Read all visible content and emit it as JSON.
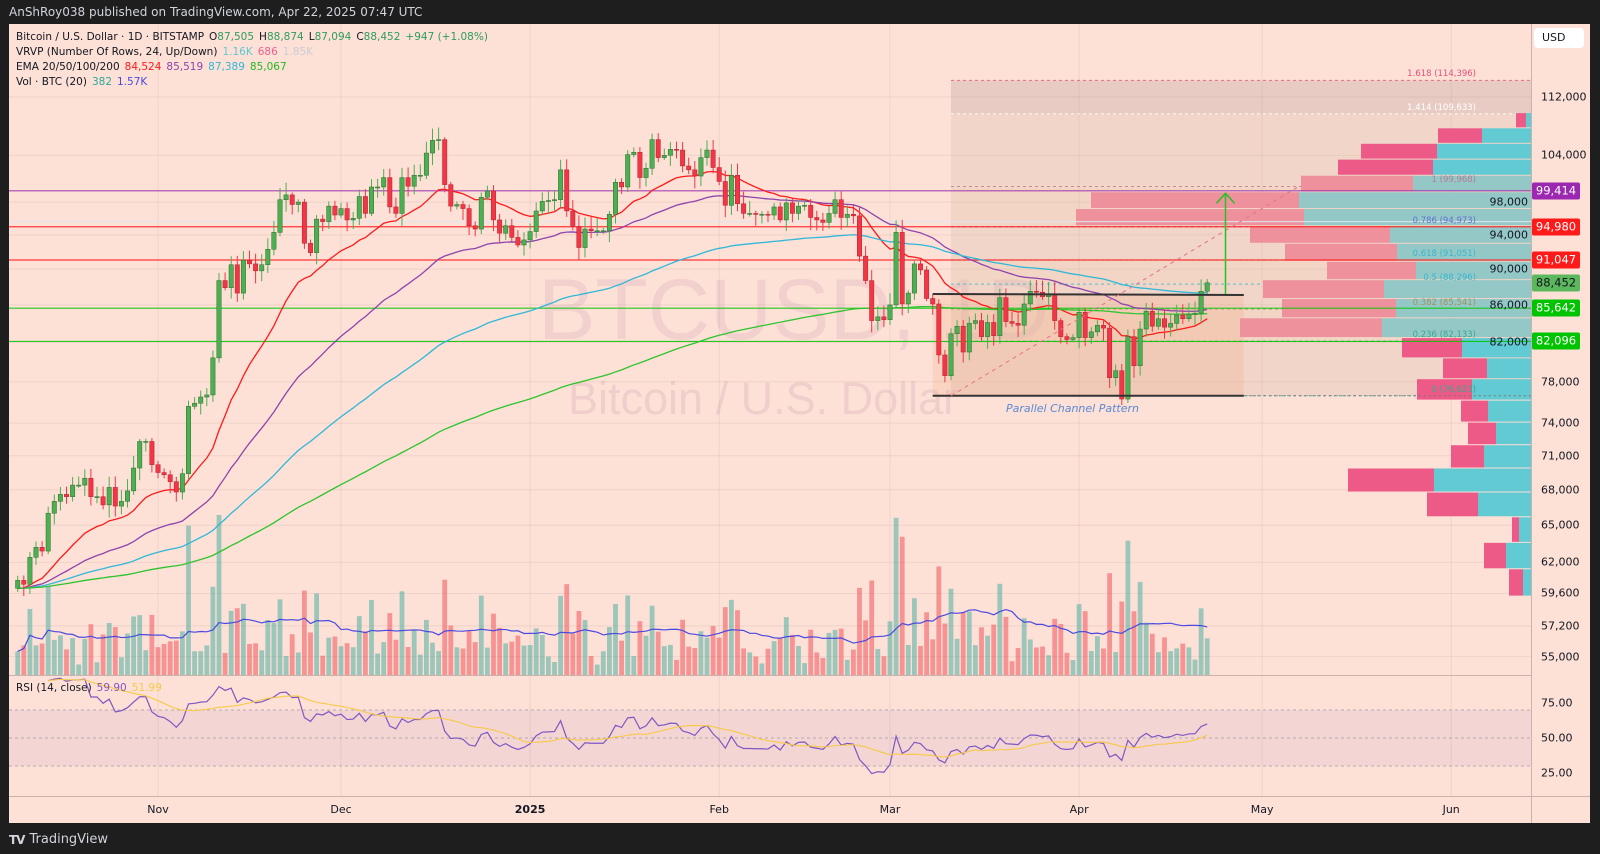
{
  "publisher": "AnShRoy038 published on TradingView.com, Apr 22, 2025 07:47 UTC",
  "currency_button": "USD",
  "brand": {
    "logo": "TV",
    "name": "TradingView"
  },
  "legend": {
    "symbol": "Bitcoin / U.S. Dollar · 1D · BITSTAMP",
    "o_label": "O",
    "o": "87,505",
    "h_label": "H",
    "h": "88,874",
    "l_label": "L",
    "l": "87,094",
    "c_label": "C",
    "c": "88,452",
    "change": "+947 (+1.08%)",
    "vrvp_title": "VRVP (Number Of Rows, 24, Up/Down)",
    "vrvp_up": "1.16K",
    "vrvp_down": "686",
    "vrvp_total": "1.85K",
    "ema_title": "EMA 20/50/100/200",
    "ema20": "84,524",
    "ema50": "85,519",
    "ema100": "87,389",
    "ema200": "85,067",
    "vol_title": "Vol · BTC (20)",
    "vol": "382",
    "vol_ma": "1.57K",
    "rsi_title": "RSI (14, close)",
    "rsi": "59.90",
    "rsi_ma": "51.99"
  },
  "watermark": {
    "ticker": "BTCUSD, 1D",
    "name": "Bitcoin / U.S. Dollar"
  },
  "colors": {
    "up": "#4caf50",
    "down": "#f23645",
    "vol_up": "rgba(38,166,154,0.45)",
    "vol_down": "rgba(242,54,69,0.45)",
    "ema20": "#ff1a1a",
    "ema50": "#8e44ad",
    "ema100": "#2fb8d8",
    "ema200": "#2ec42e",
    "vol_ma": "#4a4ae0",
    "rsi": "#7e57c2",
    "rsi_ma": "#f7c948",
    "vrvp_up": "#62cad2",
    "vrvp_down": "#ee5a88",
    "vrvp_up_va": "#93c8c6",
    "vrvp_down_va": "#ee919c"
  },
  "chart_data": {
    "type": "candlestick",
    "title": "Bitcoin / U.S. Dollar · 1D · BITSTAMP",
    "interval": "1D",
    "x_start": "2024-10-09",
    "y_scale": "log",
    "ylim": [
      53500,
      118000
    ],
    "grid": true,
    "close": [
      60600,
      60300,
      62400,
      63200,
      62900,
      66000,
      67000,
      67600,
      67400,
      68400,
      68400,
      69000,
      67400,
      67400,
      66700,
      68200,
      66600,
      67000,
      67900,
      69900,
      72300,
      72300,
      70200,
      69500,
      69300,
      68700,
      67800,
      69400,
      75600,
      75900,
      76500,
      76700,
      80400,
      88700,
      87900,
      90500,
      87300,
      91000,
      90600,
      89800,
      90500,
      92300,
      94300,
      98300,
      98900,
      97700,
      98000,
      93000,
      91900,
      95900,
      95600,
      97500,
      96400,
      97200,
      95800,
      96000,
      98700,
      96600,
      99900,
      99900,
      101100,
      97400,
      96600,
      101100,
      100000,
      101400,
      101400,
      104300,
      106000,
      106100,
      100200,
      97500,
      97700,
      97200,
      95100,
      94700,
      98600,
      99400,
      95800,
      94200,
      95100,
      93700,
      92800,
      93400,
      94400,
      96900,
      98100,
      98200,
      98300,
      102100,
      96900,
      95000,
      92500,
      94700,
      94500,
      94500,
      94500,
      96500,
      100500,
      99900,
      104100,
      104400,
      101100,
      102300,
      106100,
      103700,
      104000,
      104800,
      104700,
      102600,
      102100,
      101300,
      103700,
      104700,
      102400,
      100600,
      97600,
      101400,
      97800,
      96600,
      96600,
      96500,
      96500,
      96400,
      97400,
      95800,
      97900,
      96600,
      97500,
      97600,
      96100,
      95800,
      95500,
      96600,
      98300,
      96100,
      96500,
      96300,
      91500,
      88700,
      84300,
      84700,
      84400,
      86000,
      94300,
      86100,
      87300,
      90600,
      89900,
      86700,
      86100,
      80700,
      78600,
      82900,
      83700,
      81000,
      84000,
      84300,
      82600,
      84100,
      82700,
      86800,
      84200,
      84000,
      83800,
      86100,
      87500,
      87400,
      86900,
      87200,
      84300,
      82600,
      82300,
      82500,
      85200,
      82500,
      83100,
      83800,
      83500,
      78400,
      79100,
      76300,
      82600,
      79600,
      83400,
      85300,
      83700,
      84500,
      83600,
      84000,
      84900,
      84500,
      85000,
      85100,
      87500,
      88452
    ],
    "last_bar": {
      "open": 87505,
      "high": 88874,
      "low": 87094,
      "close": 88452
    },
    "ema_periods": [
      20,
      50,
      100,
      200
    ],
    "volume_ma_period": 20,
    "rsi": {
      "period": 14,
      "ma_period": 14,
      "ticks": [
        "75.00",
        "50.00",
        "25.00"
      ],
      "tick_values": [
        75,
        50,
        25
      ],
      "bands": [
        70,
        50,
        30
      ]
    },
    "price_axis": {
      "ticks": [
        "112,000",
        "104,000",
        "98,000",
        "94,000",
        "90,000",
        "86,000",
        "82,000",
        "78,000",
        "74,000",
        "71,000",
        "68,000",
        "65,000",
        "62,000",
        "59,600",
        "57,200",
        "55,000"
      ],
      "values": [
        112000,
        104000,
        98000,
        94000,
        90000,
        86000,
        82000,
        78000,
        74000,
        71000,
        68000,
        65000,
        62000,
        59600,
        57200,
        55000
      ]
    },
    "time_axis": [
      {
        "label": "Nov",
        "date": "2024-11-01"
      },
      {
        "label": "Dec",
        "date": "2024-12-01"
      },
      {
        "label": "2025",
        "date": "2025-01-01"
      },
      {
        "label": "Feb",
        "date": "2025-02-01"
      },
      {
        "label": "Mar",
        "date": "2025-03-01"
      },
      {
        "label": "Apr",
        "date": "2025-04-01"
      },
      {
        "label": "May",
        "date": "2025-05-01"
      },
      {
        "label": "Jun",
        "date": "2025-06-01"
      }
    ],
    "horizontal_levels": [
      {
        "price": 99414,
        "label": "99,414",
        "color": "#9c27b0",
        "text_color": "#ffffff",
        "line": true
      },
      {
        "price": 95600,
        "label": "",
        "color": "#dfe6ee",
        "line": true
      },
      {
        "price": 94980,
        "label": "94,980",
        "color": "#ff1a1a",
        "text_color": "#ffffff",
        "line": true
      },
      {
        "price": 91047,
        "label": "91,047",
        "color": "#ff1a1a",
        "text_color": "#ffffff",
        "line": true
      },
      {
        "price": 88452,
        "label": "88,452",
        "color": "#5cb85c",
        "text_color": "#131722",
        "line": false
      },
      {
        "price": 85642,
        "label": "85,642",
        "color": "#00c400",
        "text_color": "#ffffff",
        "line": true
      },
      {
        "price": 82096,
        "label": "82,096",
        "color": "#00c400",
        "text_color": "#ffffff",
        "line": true
      }
    ],
    "fibonacci": {
      "start_date": "2025-03-11",
      "levels": [
        {
          "ratio": 0,
          "price": 76623,
          "label": "0 (76,623)",
          "color": "#3aa88e"
        },
        {
          "ratio": 0.236,
          "price": 82133,
          "label": "0.236 (82,133)",
          "color": "#3aa88e"
        },
        {
          "ratio": 0.382,
          "price": 85541,
          "label": "0.382 (85,541)",
          "color": "#a4925e"
        },
        {
          "ratio": 0.5,
          "price": 88296,
          "label": "0.5 (88,296)",
          "color": "#38b6d0"
        },
        {
          "ratio": 0.618,
          "price": 91051,
          "label": "0.618 (91,051)",
          "color": "#38b6d0"
        },
        {
          "ratio": 0.786,
          "price": 94973,
          "label": "0.786 (94,973)",
          "color": "#6670d0"
        },
        {
          "ratio": 1,
          "price": 99968,
          "label": "1 (99,968)",
          "color": "#b87a92"
        },
        {
          "ratio": 1.414,
          "price": 109633,
          "label": "1.414 (109,633)",
          "color": "#ffffff"
        },
        {
          "ratio": 1.618,
          "price": 114396,
          "label": "1.618 (114,396)",
          "color": "#e8507c"
        }
      ],
      "trend_line": {
        "from": {
          "date": "2025-03-11",
          "price": 76623
        },
        "to": {
          "date": "2025-05-07",
          "price": 99968
        }
      }
    },
    "channel": {
      "label": "Parallel Channel Pattern",
      "start_date": "2025-03-08",
      "end_date": "2025-04-28",
      "top_price": 87200,
      "bottom_price": 76623
    },
    "target_arrow": {
      "date": "2025-04-25",
      "from_price": 87200,
      "to_price": 99100,
      "color": "#22c322"
    },
    "vrvp": {
      "rows": 24,
      "row_start_price": 59400,
      "row_size": 2100,
      "value_area_rows": [
        11,
        19
      ],
      "up": [
        56,
        175,
        84,
        371,
        679,
        329,
        245,
        301,
        413,
        308,
        483,
        1043,
        945,
        1029,
        805,
        938,
        987,
        1589,
        1624,
        826,
        686,
        658,
        343,
        35
      ],
      "down": [
        98,
        154,
        49,
        357,
        602,
        231,
        196,
        189,
        385,
        308,
        420,
        994,
        798,
        847,
        623,
        784,
        980,
        1596,
        1456,
        784,
        665,
        532,
        308,
        70
      ]
    }
  }
}
